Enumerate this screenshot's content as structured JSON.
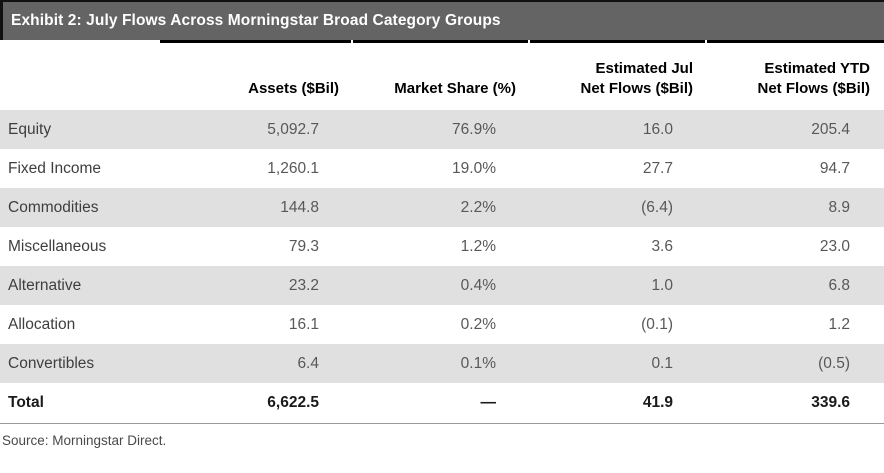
{
  "exhibit": {
    "title": "Exhibit 2: July Flows Across Morningstar Broad Category Groups",
    "source": "Source: Morningstar Direct."
  },
  "colors": {
    "title_bar_bg": "#646464",
    "row_shaded_bg": "#e0e0e0",
    "rule_black": "#000000",
    "footer_rule": "#999999"
  },
  "chart_data": {
    "type": "table",
    "title": "Exhibit 2: July Flows Across Morningstar Broad Category Groups",
    "columns": [
      "",
      "Assets ($Bil)",
      "Market Share (%)",
      "Estimated Jul Net Flows ($Bil)",
      "Estimated YTD Net Flows ($Bil)"
    ],
    "rows": [
      [
        "Equity",
        "5,092.7",
        "76.9%",
        "16.0",
        "205.4"
      ],
      [
        "Fixed Income",
        "1,260.1",
        "19.0%",
        "27.7",
        "94.7"
      ],
      [
        "Commodities",
        "144.8",
        "2.2%",
        "(6.4)",
        "8.9"
      ],
      [
        "Miscellaneous",
        "79.3",
        "1.2%",
        "3.6",
        "23.0"
      ],
      [
        "Alternative",
        "23.2",
        "0.4%",
        "1.0",
        "6.8"
      ],
      [
        "Allocation",
        "16.1",
        "0.2%",
        "(0.1)",
        "1.2"
      ],
      [
        "Convertibles",
        "6.4",
        "0.1%",
        "0.1",
        "(0.5)"
      ],
      [
        "Total",
        "6,622.5",
        "—",
        "41.9",
        "339.6"
      ]
    ]
  },
  "table": {
    "columns": [
      {
        "line1": "",
        "line2": ""
      },
      {
        "line1": "",
        "line2": "Assets ($Bil)"
      },
      {
        "line1": "",
        "line2": "Market Share (%)"
      },
      {
        "line1": "Estimated Jul",
        "line2": "Net Flows ($Bil)"
      },
      {
        "line1": "Estimated YTD",
        "line2": "Net Flows ($Bil)"
      }
    ],
    "rows": [
      {
        "label": "Equity",
        "assets": "5,092.7",
        "market_share": "76.9%",
        "est_jul_net_flows": "16.0",
        "est_ytd_net_flows": "205.4"
      },
      {
        "label": "Fixed Income",
        "assets": "1,260.1",
        "market_share": "19.0%",
        "est_jul_net_flows": "27.7",
        "est_ytd_net_flows": "94.7"
      },
      {
        "label": "Commodities",
        "assets": "144.8",
        "market_share": "2.2%",
        "est_jul_net_flows": "(6.4)",
        "est_ytd_net_flows": "8.9"
      },
      {
        "label": "Miscellaneous",
        "assets": "79.3",
        "market_share": "1.2%",
        "est_jul_net_flows": "3.6",
        "est_ytd_net_flows": "23.0"
      },
      {
        "label": "Alternative",
        "assets": "23.2",
        "market_share": "0.4%",
        "est_jul_net_flows": "1.0",
        "est_ytd_net_flows": "6.8"
      },
      {
        "label": "Allocation",
        "assets": "16.1",
        "market_share": "0.2%",
        "est_jul_net_flows": "(0.1)",
        "est_ytd_net_flows": "1.2"
      },
      {
        "label": "Convertibles",
        "assets": "6.4",
        "market_share": "0.1%",
        "est_jul_net_flows": "0.1",
        "est_ytd_net_flows": "(0.5)"
      }
    ],
    "total_row": {
      "label": "Total",
      "assets": "6,622.5",
      "market_share": "—",
      "est_jul_net_flows": "41.9",
      "est_ytd_net_flows": "339.6"
    }
  }
}
